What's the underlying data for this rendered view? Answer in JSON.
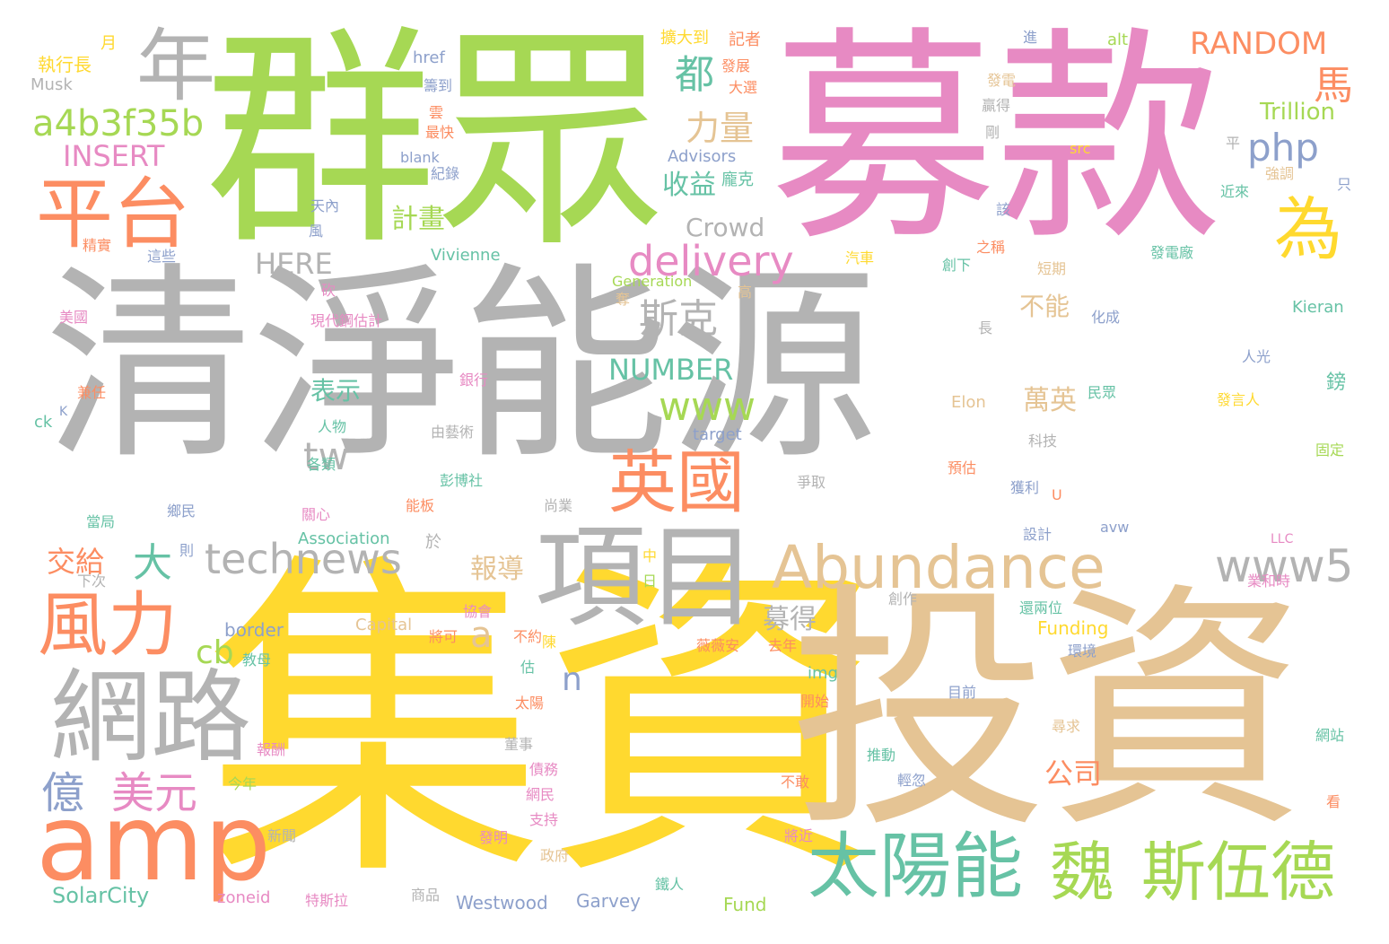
{
  "words": [
    {
      "text": "清淨能源",
      "color": "#b3b3b3"
    },
    {
      "text": "集資",
      "color": "#ffd92f"
    },
    {
      "text": "投資",
      "color": "#e5c494"
    },
    {
      "text": "募款",
      "color": "#e78ac3"
    },
    {
      "text": "群眾",
      "color": "#a6d854"
    },
    {
      "text": "項目",
      "color": "#b3b3b3"
    },
    {
      "text": "Abundance",
      "color": "#e5c494"
    },
    {
      "text": "網路",
      "color": "#b3b3b3"
    },
    {
      "text": "年",
      "color": "#b3b3b3"
    },
    {
      "text": "平台",
      "color": "#fc8d62"
    },
    {
      "text": "amp",
      "color": "#fc8d62"
    },
    {
      "text": "風力",
      "color": "#fc8d62"
    },
    {
      "text": "太陽能",
      "color": "#66c2a5"
    },
    {
      "text": "斯伍德",
      "color": "#a6d854"
    },
    {
      "text": "魏",
      "color": "#a6d854"
    },
    {
      "text": "英國",
      "color": "#fc8d62"
    },
    {
      "text": "technews",
      "color": "#b3b3b3"
    },
    {
      "text": "為",
      "color": "#ffd92f"
    },
    {
      "text": "delivery",
      "color": "#e78ac3"
    },
    {
      "text": "www5",
      "color": "#b3b3b3"
    },
    {
      "text": "億",
      "color": "#8da0cb"
    },
    {
      "text": "美元",
      "color": "#e78ac3"
    },
    {
      "text": "a4b3f35b",
      "color": "#a6d854"
    },
    {
      "text": "RANDOM",
      "color": "#fc8d62"
    },
    {
      "text": "php",
      "color": "#8da0cb"
    },
    {
      "text": "斯克",
      "color": "#b3b3b3"
    },
    {
      "text": "www",
      "color": "#a6d854"
    },
    {
      "text": "馬",
      "color": "#fc8d62"
    },
    {
      "text": "INSERT",
      "color": "#e78ac3"
    },
    {
      "text": "力量",
      "color": "#e5c494"
    },
    {
      "text": "都",
      "color": "#66c2a5"
    },
    {
      "text": "大",
      "color": "#66c2a5"
    },
    {
      "text": "NUMBER",
      "color": "#66c2a5"
    },
    {
      "text": "tw",
      "color": "#b3b3b3"
    },
    {
      "text": "HERE",
      "color": "#b3b3b3"
    },
    {
      "text": "Crowd",
      "color": "#b3b3b3"
    },
    {
      "text": "cb",
      "color": "#a6d854"
    },
    {
      "text": "a",
      "color": "#e5c494"
    },
    {
      "text": "n",
      "color": "#8da0cb"
    },
    {
      "text": "Trillion",
      "color": "#a6d854"
    },
    {
      "text": "收益",
      "color": "#66c2a5"
    },
    {
      "text": "計畫",
      "color": "#a6d854"
    },
    {
      "text": "報導",
      "color": "#e5c494"
    },
    {
      "text": "募得",
      "color": "#b3b3b3"
    },
    {
      "text": "萬英",
      "color": "#e5c494"
    },
    {
      "text": "公司",
      "color": "#fc8d62"
    },
    {
      "text": "表示",
      "color": "#66c2a5"
    },
    {
      "text": "不能",
      "color": "#e5c494"
    },
    {
      "text": "交給",
      "color": "#fc8d62"
    },
    {
      "text": "SolarCity",
      "color": "#66c2a5"
    },
    {
      "text": "Westwood",
      "color": "#8da0cb"
    },
    {
      "text": "Garvey",
      "color": "#8da0cb"
    },
    {
      "text": "Fund",
      "color": "#a6d854"
    },
    {
      "text": "zoneid",
      "color": "#e78ac3"
    },
    {
      "text": "Funding",
      "color": "#ffd92f"
    },
    {
      "text": "Capital",
      "color": "#e5c494"
    },
    {
      "text": "border",
      "color": "#8da0cb"
    },
    {
      "text": "Association",
      "color": "#66c2a5"
    },
    {
      "text": "Vivienne",
      "color": "#66c2a5"
    },
    {
      "text": "Generation",
      "color": "#a6d854"
    },
    {
      "text": "Advisors",
      "color": "#8da0cb"
    },
    {
      "text": "Kieran",
      "color": "#66c2a5"
    },
    {
      "text": "Elon",
      "color": "#e5c494"
    },
    {
      "text": "Musk",
      "color": "#b3b3b3"
    },
    {
      "text": "href",
      "color": "#8da0cb"
    },
    {
      "text": "alt",
      "color": "#a6d854"
    },
    {
      "text": "src",
      "color": "#ffd92f"
    },
    {
      "text": "img",
      "color": "#66c2a5"
    },
    {
      "text": "target",
      "color": "#8da0cb"
    },
    {
      "text": "blank",
      "color": "#8da0cb"
    },
    {
      "text": "LLC",
      "color": "#e78ac3"
    },
    {
      "text": "avw",
      "color": "#8da0cb"
    },
    {
      "text": "執行長",
      "color": "#ffd92f"
    },
    {
      "text": "月",
      "color": "#ffd92f"
    },
    {
      "text": "擴大到",
      "color": "#ffd92f"
    },
    {
      "text": "記者",
      "color": "#fc8d62"
    },
    {
      "text": "發展",
      "color": "#fc8d62"
    },
    {
      "text": "大選",
      "color": "#fc8d62"
    },
    {
      "text": "龐克",
      "color": "#66c2a5"
    },
    {
      "text": "籌到",
      "color": "#8da0cb"
    },
    {
      "text": "雲",
      "color": "#fc8d62"
    },
    {
      "text": "最快",
      "color": "#fc8d62"
    },
    {
      "text": "紀錄",
      "color": "#8da0cb"
    },
    {
      "text": "天內",
      "color": "#8da0cb"
    },
    {
      "text": "風",
      "color": "#8da0cb"
    },
    {
      "text": "精實",
      "color": "#fc8d62"
    },
    {
      "text": "這些",
      "color": "#8da0cb"
    },
    {
      "text": "砍",
      "color": "#e78ac3"
    },
    {
      "text": "美國",
      "color": "#e78ac3"
    },
    {
      "text": "現代鋼估計",
      "color": "#e78ac3"
    },
    {
      "text": "兼任",
      "color": "#fc8d62"
    },
    {
      "text": "銀行",
      "color": "#e78ac3"
    },
    {
      "text": "人物",
      "color": "#66c2a5"
    },
    {
      "text": "由藝術",
      "color": "#b3b3b3"
    },
    {
      "text": "彭博社",
      "color": "#66c2a5"
    },
    {
      "text": "各類",
      "color": "#66c2a5"
    },
    {
      "text": "鄉民",
      "color": "#8da0cb"
    },
    {
      "text": "關心",
      "color": "#e78ac3"
    },
    {
      "text": "能板",
      "color": "#fc8d62"
    },
    {
      "text": "當局",
      "color": "#66c2a5"
    },
    {
      "text": "則",
      "color": "#8da0cb"
    },
    {
      "text": "於",
      "color": "#b3b3b3"
    },
    {
      "text": "下次",
      "color": "#b3b3b3"
    },
    {
      "text": "協會",
      "color": "#e78ac3"
    },
    {
      "text": "將可",
      "color": "#fc8d62"
    },
    {
      "text": "不約",
      "color": "#fc8d62"
    },
    {
      "text": "教母",
      "color": "#66c2a5"
    },
    {
      "text": "估",
      "color": "#66c2a5"
    },
    {
      "text": "報酬",
      "color": "#e78ac3"
    },
    {
      "text": "今年",
      "color": "#a6d854"
    },
    {
      "text": "債務",
      "color": "#e78ac3"
    },
    {
      "text": "太陽",
      "color": "#fc8d62"
    },
    {
      "text": "董事",
      "color": "#b3b3b3"
    },
    {
      "text": "網民",
      "color": "#e78ac3"
    },
    {
      "text": "支持",
      "color": "#e78ac3"
    },
    {
      "text": "新聞",
      "color": "#b3b3b3"
    },
    {
      "text": "發明",
      "color": "#e78ac3"
    },
    {
      "text": "政府",
      "color": "#e5c494"
    },
    {
      "text": "特斯拉",
      "color": "#e78ac3"
    },
    {
      "text": "商品",
      "color": "#b3b3b3"
    },
    {
      "text": "鐵人",
      "color": "#66c2a5"
    },
    {
      "text": "將近",
      "color": "#e78ac3"
    },
    {
      "text": "不敢",
      "color": "#fc8d62"
    },
    {
      "text": "開始",
      "color": "#fc8d62"
    },
    {
      "text": "輕忽",
      "color": "#8da0cb"
    },
    {
      "text": "推動",
      "color": "#66c2a5"
    },
    {
      "text": "薇薇安",
      "color": "#fc8d62"
    },
    {
      "text": "去年",
      "color": "#fc8d62"
    },
    {
      "text": "創作",
      "color": "#b3b3b3"
    },
    {
      "text": "還兩位",
      "color": "#66c2a5"
    },
    {
      "text": "環境",
      "color": "#8da0cb"
    },
    {
      "text": "目前",
      "color": "#8da0cb"
    },
    {
      "text": "尋求",
      "color": "#e5c494"
    },
    {
      "text": "設計",
      "color": "#8da0cb"
    },
    {
      "text": "業和時",
      "color": "#e78ac3"
    },
    {
      "text": "獲利",
      "color": "#8da0cb"
    },
    {
      "text": "科技",
      "color": "#b3b3b3"
    },
    {
      "text": "預估",
      "color": "#fc8d62"
    },
    {
      "text": "尚業",
      "color": "#b3b3b3"
    },
    {
      "text": "爭取",
      "color": "#b3b3b3"
    },
    {
      "text": "民眾",
      "color": "#66c2a5"
    },
    {
      "text": "發言人",
      "color": "#ffd92f"
    },
    {
      "text": "固定",
      "color": "#a6d854"
    },
    {
      "text": "人光",
      "color": "#8da0cb"
    },
    {
      "text": "鎊",
      "color": "#66c2a5"
    },
    {
      "text": "化成",
      "color": "#8da0cb"
    },
    {
      "text": "長",
      "color": "#b3b3b3"
    },
    {
      "text": "創下",
      "color": "#66c2a5"
    },
    {
      "text": "之稱",
      "color": "#fc8d62"
    },
    {
      "text": "汽車",
      "color": "#ffd92f"
    },
    {
      "text": "短期",
      "color": "#e5c494"
    },
    {
      "text": "發電廠",
      "color": "#66c2a5"
    },
    {
      "text": "該",
      "color": "#8da0cb"
    },
    {
      "text": "近來",
      "color": "#66c2a5"
    },
    {
      "text": "強調",
      "color": "#e5c494"
    },
    {
      "text": "只",
      "color": "#8da0cb"
    },
    {
      "text": "平",
      "color": "#b3b3b3"
    },
    {
      "text": "剛",
      "color": "#b3b3b3"
    },
    {
      "text": "贏得",
      "color": "#b3b3b3"
    },
    {
      "text": "發電",
      "color": "#e5c494"
    },
    {
      "text": "進",
      "color": "#8da0cb"
    },
    {
      "text": "高",
      "color": "#e5c494"
    },
    {
      "text": "奪",
      "color": "#e5c494"
    },
    {
      "text": "中",
      "color": "#ffd92f"
    },
    {
      "text": "日",
      "color": "#a6d854"
    },
    {
      "text": "陳",
      "color": "#ffd92f"
    },
    {
      "text": "U",
      "color": "#fc8d62"
    },
    {
      "text": "K",
      "color": "#8da0cb"
    },
    {
      "text": "ck",
      "color": "#66c2a5"
    },
    {
      "text": "網站",
      "color": "#66c2a5"
    },
    {
      "text": "看",
      "color": "#fc8d62"
    }
  ]
}
